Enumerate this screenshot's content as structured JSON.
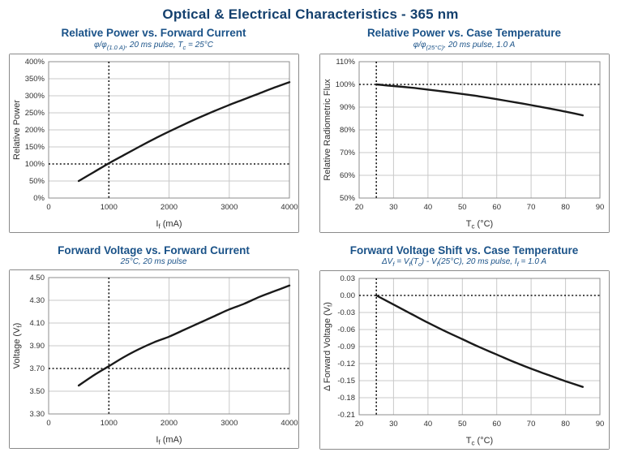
{
  "page": {
    "title": "Optical & Electrical Characteristics - 365 nm"
  },
  "colors": {
    "title_navy": "#14406e",
    "chart_title_blue": "#1a5288",
    "curve": "#1a1a1a",
    "grid": "#c9c9c9",
    "frame": "#8c8c8c",
    "reference_dotted": "#111111",
    "tick_text": "#303030"
  },
  "chart_data": [
    {
      "type": "line",
      "title": "Relative Power vs. Forward Current",
      "subtitle_segments": [
        {
          "t": "φ/φ"
        },
        {
          "t": "(1.0 A)",
          "sub": true
        },
        {
          "t": ", 20 ms pulse, T"
        },
        {
          "t": "c",
          "sub": true
        },
        {
          "t": " = 25°C"
        }
      ],
      "xlabel_segments": [
        {
          "t": "I"
        },
        {
          "t": "f",
          "sub": true
        },
        {
          "t": " (mA)"
        }
      ],
      "ylabel_segments": [
        {
          "t": "Relative Power"
        }
      ],
      "xlim": [
        0,
        4000
      ],
      "ylim": [
        0,
        400
      ],
      "x_ticks": [
        0,
        1000,
        2000,
        3000,
        4000
      ],
      "x_tick_labels": [
        "0",
        "1000",
        "2000",
        "3000",
        "4000"
      ],
      "y_ticks": [
        0,
        50,
        100,
        150,
        200,
        250,
        300,
        350,
        400
      ],
      "y_tick_labels": [
        "0%",
        "50%",
        "100%",
        "150%",
        "200%",
        "250%",
        "300%",
        "350%",
        "400%"
      ],
      "reference": {
        "x": 1000,
        "y": 100
      },
      "points": [
        [
          500,
          50
        ],
        [
          750,
          76
        ],
        [
          1000,
          102
        ],
        [
          1250,
          126
        ],
        [
          1500,
          150
        ],
        [
          1750,
          173
        ],
        [
          2000,
          195
        ],
        [
          2250,
          216
        ],
        [
          2500,
          236
        ],
        [
          2750,
          255
        ],
        [
          3000,
          273
        ],
        [
          3250,
          290
        ],
        [
          3500,
          307
        ],
        [
          3750,
          324
        ],
        [
          4000,
          340
        ]
      ]
    },
    {
      "type": "line",
      "title": "Relative Power vs. Case Temperature",
      "subtitle_segments": [
        {
          "t": "φ/φ"
        },
        {
          "t": "(25°C)",
          "sub": true
        },
        {
          "t": ", 20 ms pulse, 1.0 A"
        }
      ],
      "xlabel_segments": [
        {
          "t": "T"
        },
        {
          "t": "c",
          "sub": true
        },
        {
          "t": " (°C)"
        }
      ],
      "ylabel_segments": [
        {
          "t": "Relative Radiometric Flux"
        }
      ],
      "xlim": [
        20,
        90
      ],
      "ylim": [
        50,
        110
      ],
      "x_ticks": [
        20,
        30,
        40,
        50,
        60,
        70,
        80,
        90
      ],
      "x_tick_labels": [
        "20",
        "30",
        "40",
        "50",
        "60",
        "70",
        "80",
        "90"
      ],
      "y_ticks": [
        50,
        60,
        70,
        80,
        90,
        100,
        110
      ],
      "y_tick_labels": [
        "50%",
        "60%",
        "70%",
        "80%",
        "90%",
        "100%",
        "110%"
      ],
      "reference": {
        "x": 25,
        "y": 100
      },
      "points": [
        [
          25,
          100
        ],
        [
          30,
          99.3
        ],
        [
          35,
          98.6
        ],
        [
          40,
          97.7
        ],
        [
          45,
          96.8
        ],
        [
          50,
          95.8
        ],
        [
          55,
          94.7
        ],
        [
          60,
          93.5
        ],
        [
          65,
          92.2
        ],
        [
          70,
          90.9
        ],
        [
          75,
          89.5
        ],
        [
          80,
          88.0
        ],
        [
          85,
          86.4
        ]
      ]
    },
    {
      "type": "line",
      "title": "Forward Voltage vs. Forward Current",
      "subtitle_segments": [
        {
          "t": "25°C, 20 ms pulse"
        }
      ],
      "xlabel_segments": [
        {
          "t": "I"
        },
        {
          "t": "f",
          "sub": true
        },
        {
          "t": " (mA)"
        }
      ],
      "ylabel_segments": [
        {
          "t": "Voltage (V"
        },
        {
          "t": "f",
          "sub": true
        },
        {
          "t": ")"
        }
      ],
      "xlim": [
        0,
        4000
      ],
      "ylim": [
        3.3,
        4.5
      ],
      "x_ticks": [
        0,
        1000,
        2000,
        3000,
        4000
      ],
      "x_tick_labels": [
        "0",
        "1000",
        "2000",
        "3000",
        "4000"
      ],
      "y_ticks": [
        3.3,
        3.5,
        3.7,
        3.9,
        4.1,
        4.3,
        4.5
      ],
      "y_tick_labels": [
        "3.30",
        "3.50",
        "3.70",
        "3.90",
        "4.10",
        "4.30",
        "4.50"
      ],
      "reference": {
        "x": 1000,
        "y": 3.7
      },
      "points": [
        [
          500,
          3.55
        ],
        [
          750,
          3.64
        ],
        [
          1000,
          3.72
        ],
        [
          1250,
          3.8
        ],
        [
          1500,
          3.87
        ],
        [
          1750,
          3.93
        ],
        [
          2000,
          3.98
        ],
        [
          2250,
          4.04
        ],
        [
          2500,
          4.1
        ],
        [
          2750,
          4.16
        ],
        [
          3000,
          4.22
        ],
        [
          3250,
          4.27
        ],
        [
          3500,
          4.33
        ],
        [
          3750,
          4.38
        ],
        [
          4000,
          4.43
        ]
      ]
    },
    {
      "type": "line",
      "title": "Forward Voltage Shift vs. Case Temperature",
      "subtitle_segments": [
        {
          "t": "ΔV"
        },
        {
          "t": "f",
          "sub": true
        },
        {
          "t": " = V"
        },
        {
          "t": "f",
          "sub": true
        },
        {
          "t": "(T"
        },
        {
          "t": "c",
          "sub": true
        },
        {
          "t": ") - V"
        },
        {
          "t": "f",
          "sub": true
        },
        {
          "t": "(25°C), 20 ms pulse, I"
        },
        {
          "t": "f",
          "sub": true
        },
        {
          "t": " = 1.0 A"
        }
      ],
      "xlabel_segments": [
        {
          "t": "T"
        },
        {
          "t": "c",
          "sub": true
        },
        {
          "t": " (°C)"
        }
      ],
      "ylabel_segments": [
        {
          "t": "Δ Forward Voltage (V"
        },
        {
          "t": "f",
          "sub": true
        },
        {
          "t": ")"
        }
      ],
      "xlim": [
        20,
        90
      ],
      "ylim": [
        -0.21,
        0.03
      ],
      "x_ticks": [
        20,
        30,
        40,
        50,
        60,
        70,
        80,
        90
      ],
      "x_tick_labels": [
        "20",
        "30",
        "40",
        "50",
        "60",
        "70",
        "80",
        "90"
      ],
      "y_ticks": [
        -0.21,
        -0.18,
        -0.15,
        -0.12,
        -0.09,
        -0.06,
        -0.03,
        0.0,
        0.03
      ],
      "y_tick_labels": [
        "-0.21",
        "-0.18",
        "-0.15",
        "-0.12",
        "-0.09",
        "-0.06",
        "-0.03",
        "0.00",
        "0.03"
      ],
      "reference": {
        "x": 25,
        "y": 0.0
      },
      "points": [
        [
          25,
          0.0
        ],
        [
          30,
          -0.016
        ],
        [
          35,
          -0.032
        ],
        [
          40,
          -0.048
        ],
        [
          45,
          -0.063
        ],
        [
          50,
          -0.077
        ],
        [
          55,
          -0.091
        ],
        [
          60,
          -0.104
        ],
        [
          65,
          -0.117
        ],
        [
          70,
          -0.129
        ],
        [
          75,
          -0.14
        ],
        [
          80,
          -0.151
        ],
        [
          85,
          -0.161
        ]
      ]
    }
  ]
}
